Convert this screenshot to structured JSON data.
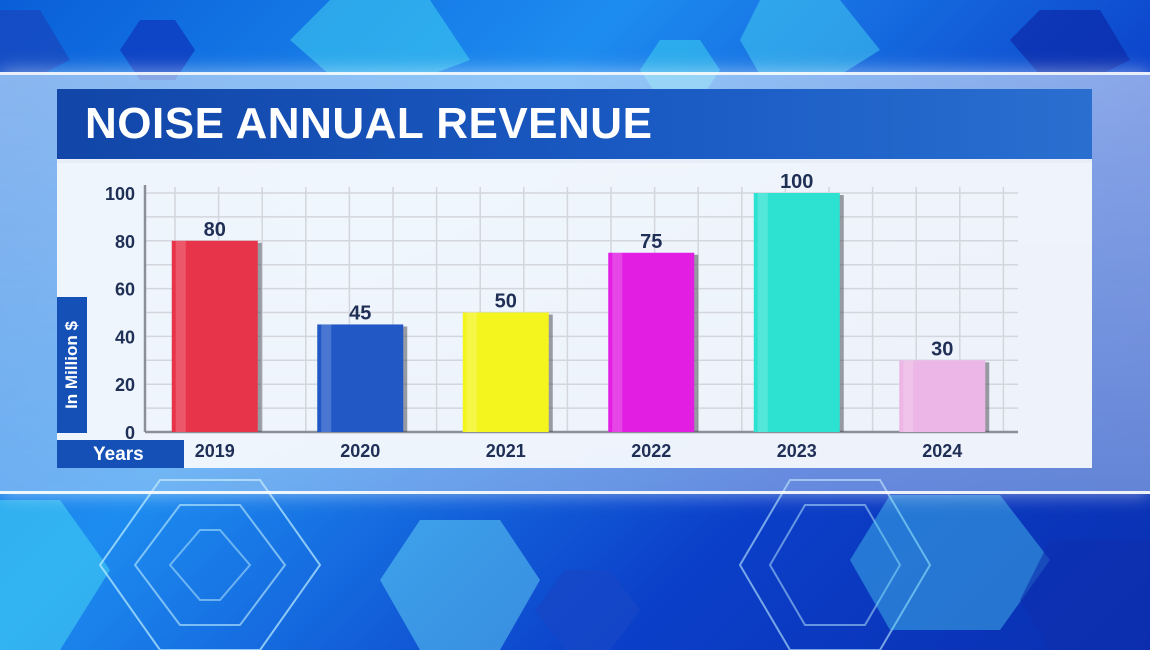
{
  "title": "NOISE ANNUAL REVENUE",
  "colors": {
    "title_bar": "#1550b6",
    "label_box": "#1550b6",
    "text_dark": "#1f2f55"
  },
  "chart_data": {
    "type": "bar",
    "title": "NOISE ANNUAL REVENUE",
    "xlabel": "Years",
    "ylabel": "In Million $",
    "categories": [
      "2019",
      "2020",
      "2021",
      "2022",
      "2023",
      "2024"
    ],
    "values": [
      80,
      45,
      50,
      75,
      100,
      30
    ],
    "data_labels": [
      "80",
      "45",
      "50",
      "75",
      "100",
      "30"
    ],
    "bar_colors": [
      "#e8344a",
      "#2158c6",
      "#f4f41e",
      "#e21ee2",
      "#2ee2d2",
      "#ecb6e6"
    ],
    "yticks": [
      0,
      20,
      40,
      60,
      80,
      100
    ],
    "ylim": [
      0,
      100
    ],
    "grid": true,
    "legend": "none"
  }
}
